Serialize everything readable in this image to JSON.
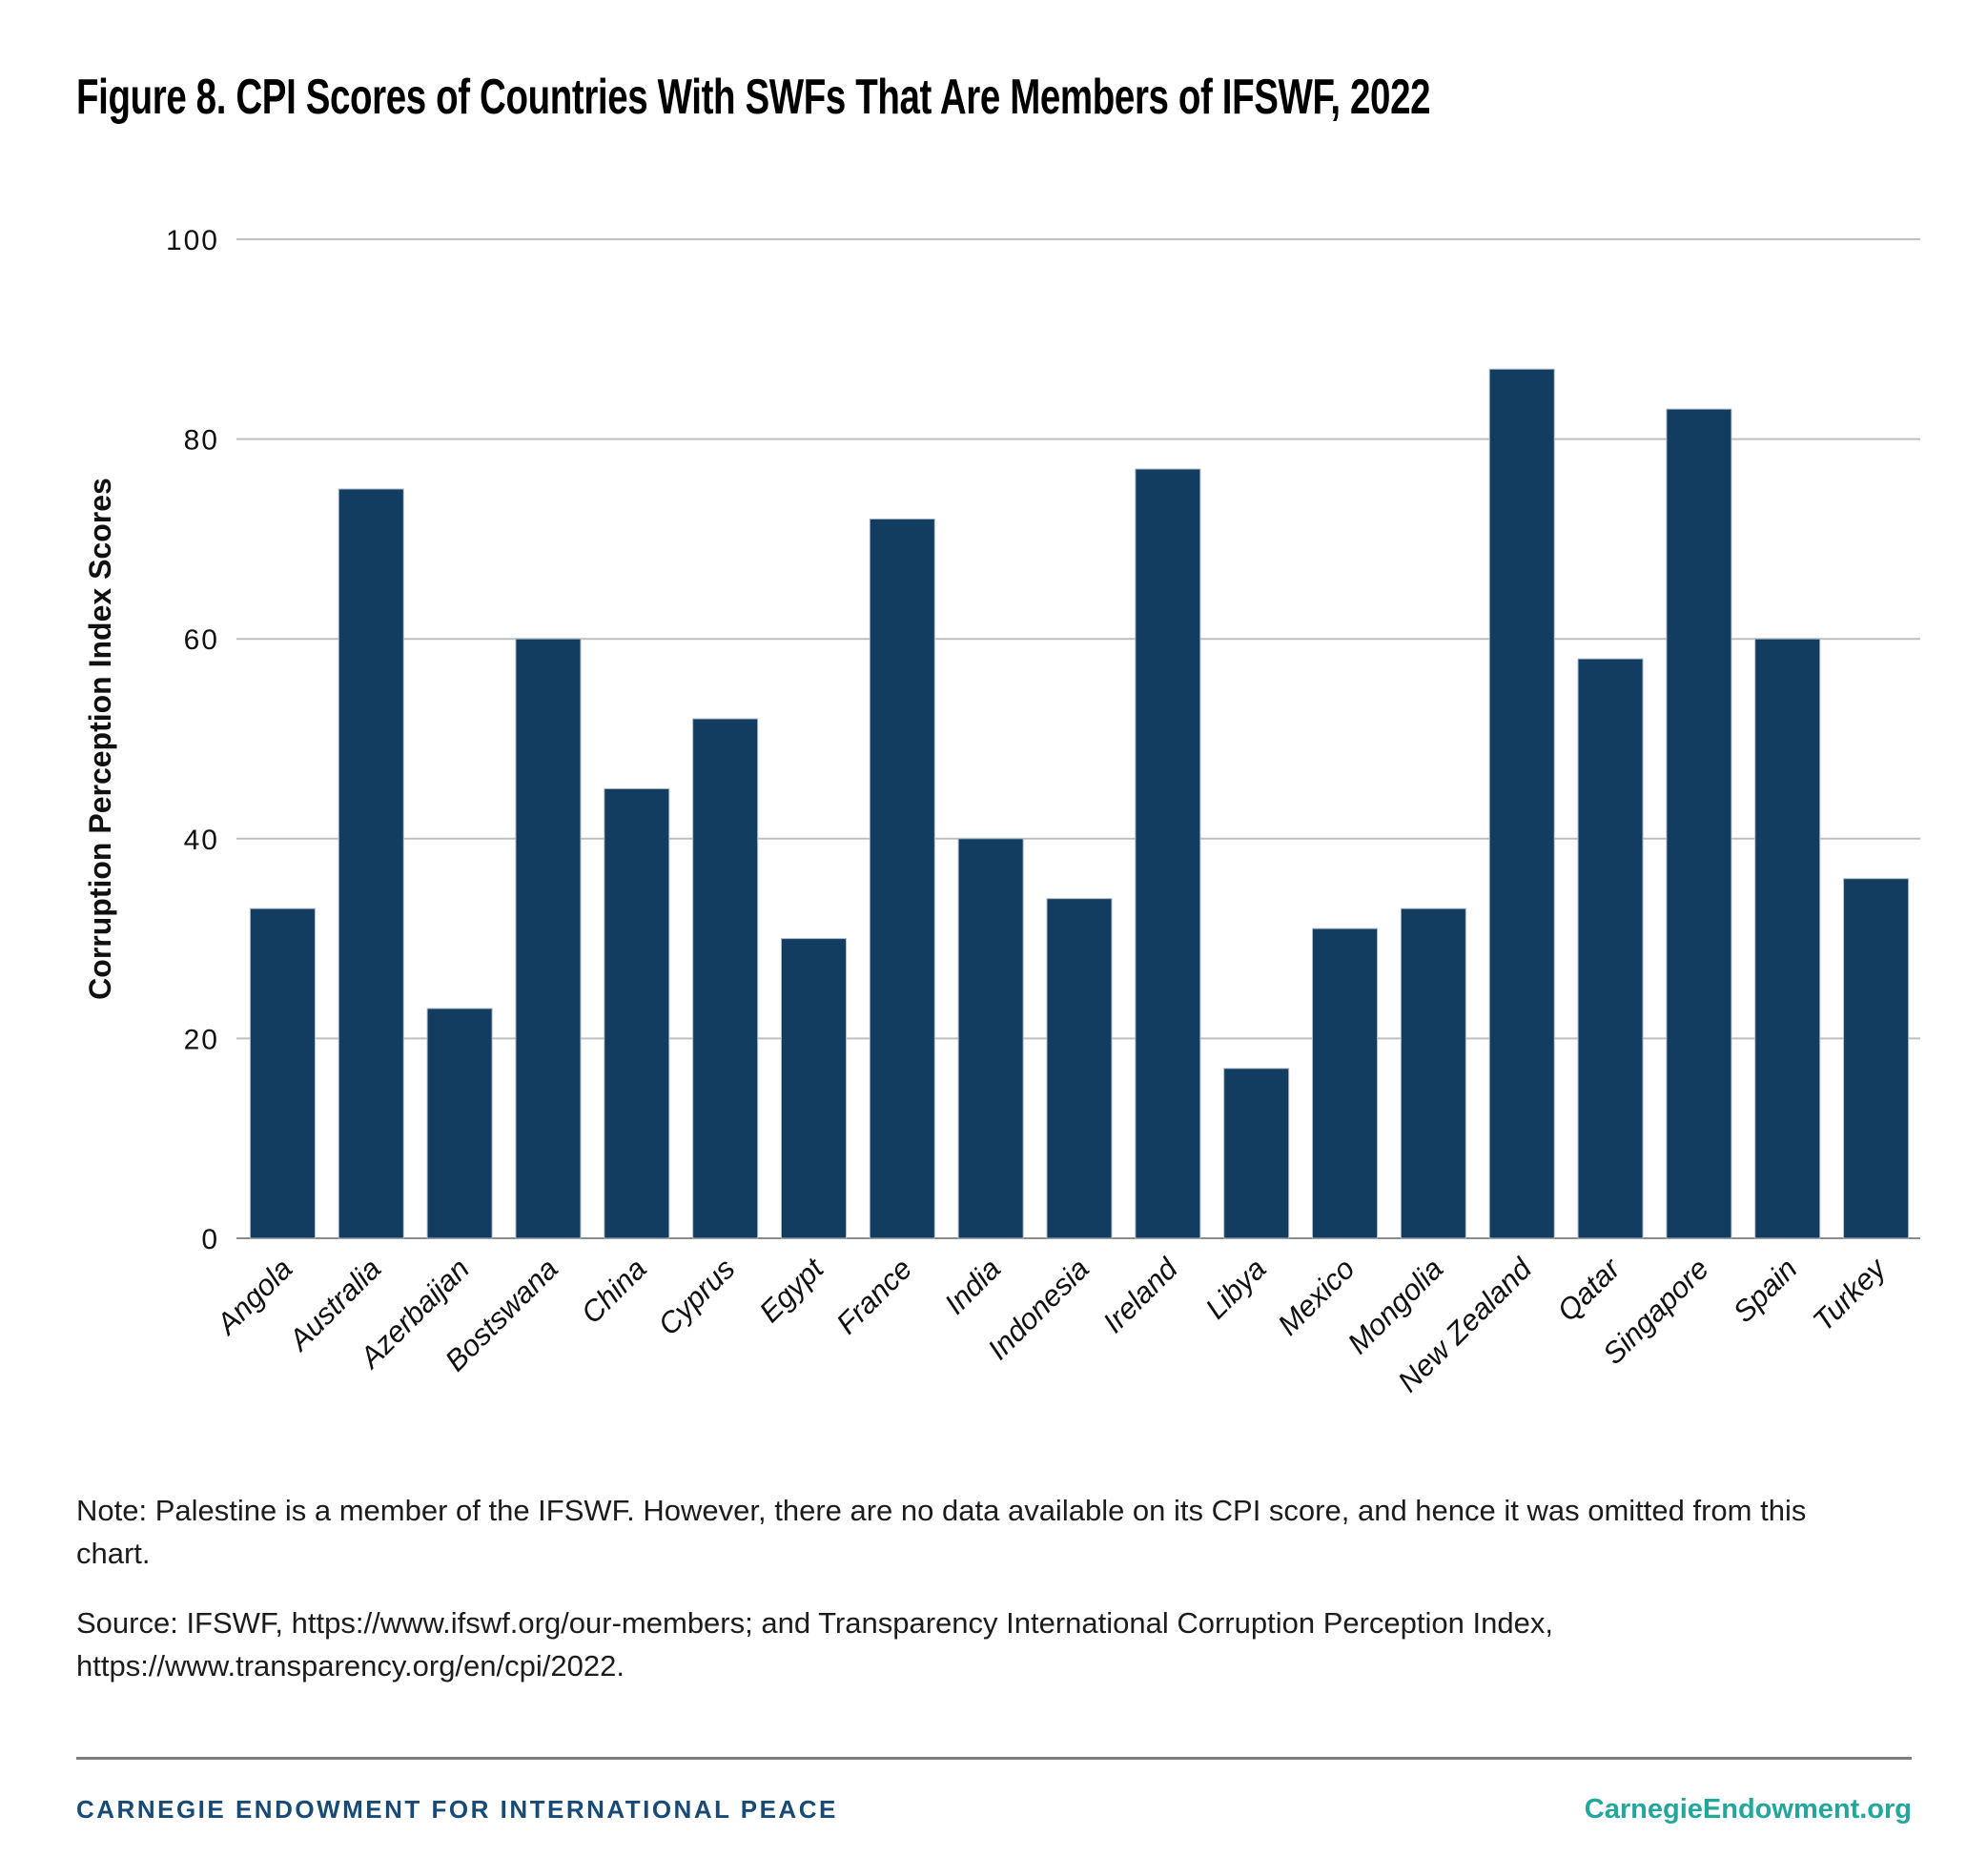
{
  "title": "Figure 8. CPI Scores of Countries With SWFs That Are Members of IFSWF, 2022",
  "chart_data": {
    "type": "bar",
    "title": "Figure 8. CPI Scores of Countries With SWFs That Are Members of IFSWF, 2022",
    "xlabel": "",
    "ylabel": "Corruption Perception Index Scores",
    "ylim": [
      0,
      100
    ],
    "yticks": [
      0,
      20,
      40,
      60,
      80,
      100
    ],
    "grid": true,
    "legend": "none",
    "categories": [
      "Angola",
      "Australia",
      "Azerbaijan",
      "Bostswana",
      "China",
      "Cyprus",
      "Egypt",
      "France",
      "India",
      "Indonesia",
      "Ireland",
      "Libya",
      "Mexico",
      "Mongolia",
      "New Zealand",
      "Qatar",
      "Singapore",
      "Spain",
      "Turkey"
    ],
    "values": [
      33,
      75,
      23,
      60,
      45,
      52,
      30,
      72,
      40,
      34,
      77,
      17,
      31,
      33,
      87,
      58,
      83,
      60,
      36
    ],
    "bar_color": "#133C61",
    "bar_edge_color": "#AEBAC5",
    "gridline_color": "#BFBFBF",
    "baseline_color": "#8C8C8C",
    "tick_label_color": "#111111"
  },
  "note": "Note: Palestine is a member of the IFSWF. However, there are no data available on its CPI score, and hence it was omitted from this chart.",
  "source": "Source: IFSWF, https://www.ifswf.org/our-members; and Transparency International Corruption Perception Index, https://www.transparency.org/en/cpi/2022.",
  "footer": {
    "left_text": "CARNEGIE ENDOWMENT FOR INTERNATIONAL PEACE",
    "right_text": "CarnegieEndowment.org",
    "left_color": "#174A77",
    "right_color": "#23A69C"
  }
}
